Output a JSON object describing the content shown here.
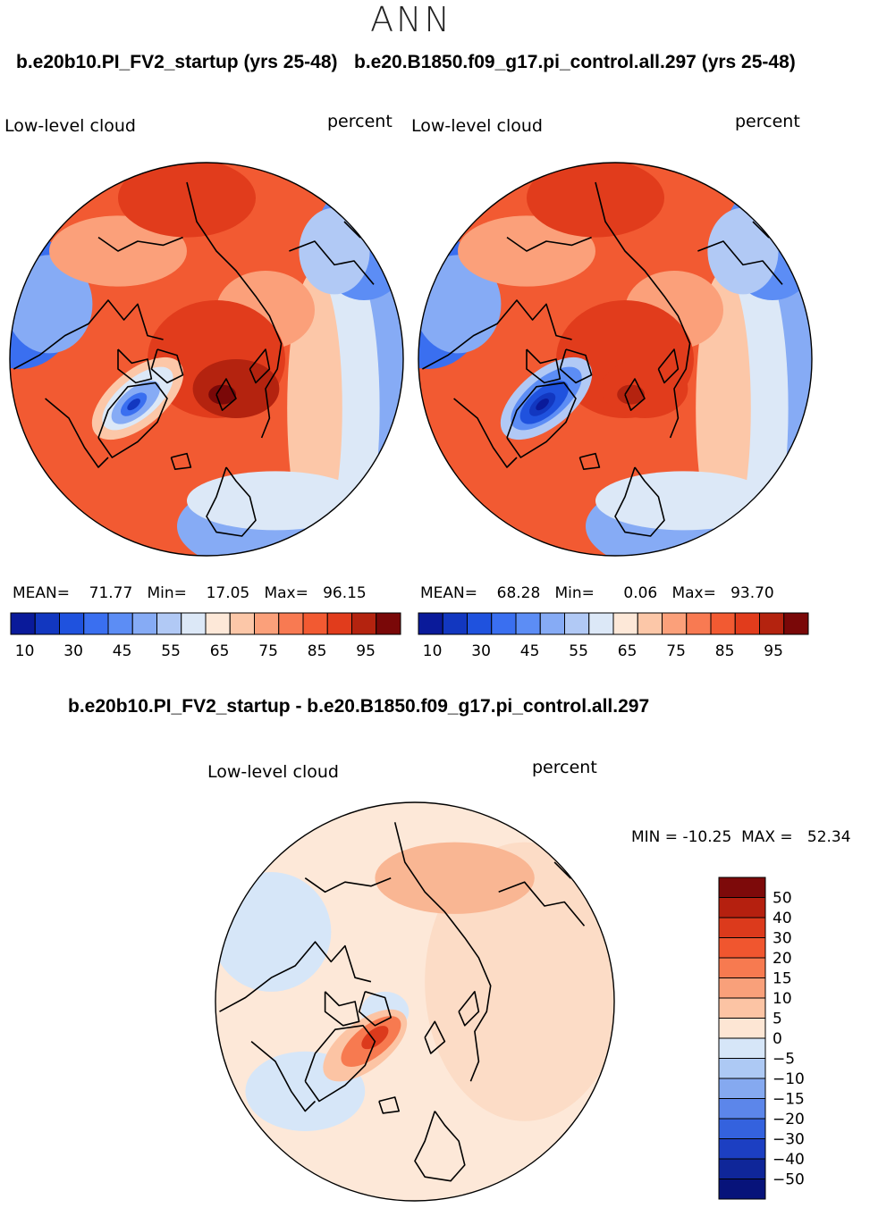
{
  "figure": {
    "season": "ANN"
  },
  "chart_data": [
    {
      "type": "heatmap",
      "projection": "north-polar-stereographic",
      "case_title": "b.e20b10.PI_FV2_startup (yrs 25-48)",
      "variable": "Low-level cloud",
      "units": "percent",
      "stats": {
        "mean_label": "MEAN=",
        "mean": "71.77",
        "min_label": "Min=",
        "min": "17.05",
        "max_label": "Max=",
        "max": "96.15"
      },
      "colorbar": {
        "levels": [
          10,
          20,
          30,
          40,
          45,
          50,
          55,
          60,
          65,
          70,
          75,
          80,
          85,
          90,
          95
        ],
        "tick_labels": [
          "10",
          "30",
          "45",
          "55",
          "65",
          "75",
          "85",
          "95"
        ],
        "colors": [
          "#0a1a9a",
          "#1237c0",
          "#1f52de",
          "#3a6ff0",
          "#5c8df5",
          "#86abf5",
          "#b1c9f5",
          "#dce8f7",
          "#fde8d8",
          "#fcc7a8",
          "#fba07a",
          "#f87a52",
          "#f25a32",
          "#e13c1c",
          "#b4230f",
          "#7a0808"
        ]
      },
      "field_pattern": "greenland-low-ocean-high"
    },
    {
      "type": "heatmap",
      "projection": "north-polar-stereographic",
      "case_title": "b.e20.B1850.f09_g17.pi_control.all.297 (yrs 25-48)",
      "variable": "Low-level cloud",
      "units": "percent",
      "stats": {
        "mean_label": "MEAN=",
        "mean": "68.28",
        "min_label": "Min=",
        "min": "0.06",
        "max_label": "Max=",
        "max": "93.70"
      },
      "colorbar": {
        "levels": [
          10,
          20,
          30,
          40,
          45,
          50,
          55,
          60,
          65,
          70,
          75,
          80,
          85,
          90,
          95
        ],
        "tick_labels": [
          "10",
          "30",
          "45",
          "55",
          "65",
          "75",
          "85",
          "95"
        ],
        "colors": [
          "#0a1a9a",
          "#1237c0",
          "#1f52de",
          "#3a6ff0",
          "#5c8df5",
          "#86abf5",
          "#b1c9f5",
          "#dce8f7",
          "#fde8d8",
          "#fcc7a8",
          "#fba07a",
          "#f87a52",
          "#f25a32",
          "#e13c1c",
          "#b4230f",
          "#7a0808"
        ]
      },
      "field_pattern": "greenland-very-low-ocean-high"
    },
    {
      "type": "heatmap",
      "projection": "north-polar-stereographic",
      "case_title": "b.e20b10.PI_FV2_startup - b.e20.B1850.f09_g17.pi_control.all.297",
      "variable": "Low-level cloud",
      "units": "percent",
      "stats": {
        "min_label": "MIN =",
        "min": "-10.25",
        "max_label": "MAX =",
        "max": "52.34"
      },
      "colorbar": {
        "orientation": "vertical",
        "tick_labels": [
          "50",
          "40",
          "30",
          "20",
          "15",
          "10",
          "5",
          "0",
          "-5",
          "-10",
          "-15",
          "-20",
          "-30",
          "-40",
          "-50"
        ],
        "colors": [
          "#7d0a0a",
          "#b5200f",
          "#dc3a1c",
          "#f0562f",
          "#f77a50",
          "#f9a07a",
          "#fcc4a4",
          "#fde6d4",
          "#d6e6f8",
          "#adc9f4",
          "#85a9f0",
          "#5c86ea",
          "#3462de",
          "#1c3fc2",
          "#0f2699",
          "#07137a"
        ]
      },
      "field_pattern": "difference-greenland-positive"
    }
  ]
}
